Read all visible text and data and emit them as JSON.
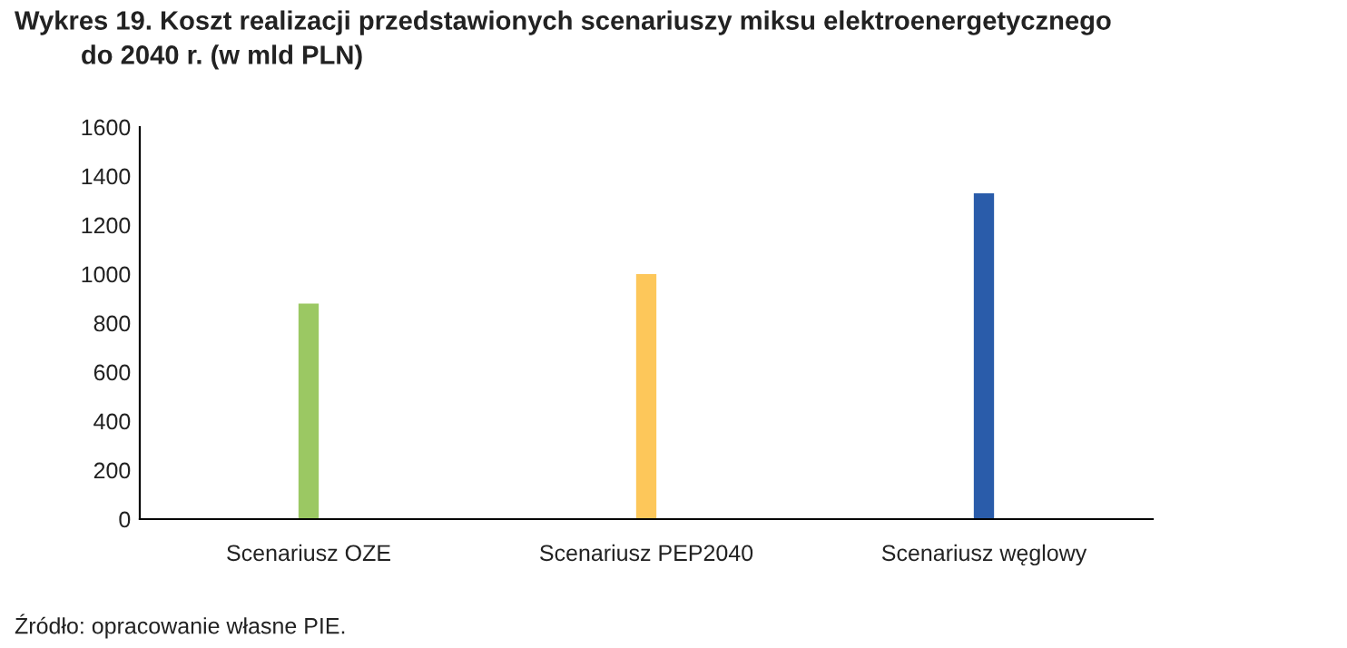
{
  "chart_data": {
    "type": "bar",
    "title": "Wykres 19. Koszt realizacji przedstawionych scenariuszy miksu elektroenergetycznego\n         do 2040 r. (w mld PLN)",
    "categories": [
      "Scenariusz OZE",
      "Scenariusz PEP2040",
      "Scenariusz węglowy"
    ],
    "values": [
      880,
      1000,
      1330
    ],
    "colors": [
      "#9bc863",
      "#fdc75a",
      "#2a5caa"
    ],
    "ylim": [
      0,
      1600
    ],
    "yticks": [
      0,
      200,
      400,
      600,
      800,
      1000,
      1200,
      1400,
      1600
    ],
    "grid": false,
    "annotations": [
      "Źródło: opracowanie własne PIE."
    ]
  }
}
